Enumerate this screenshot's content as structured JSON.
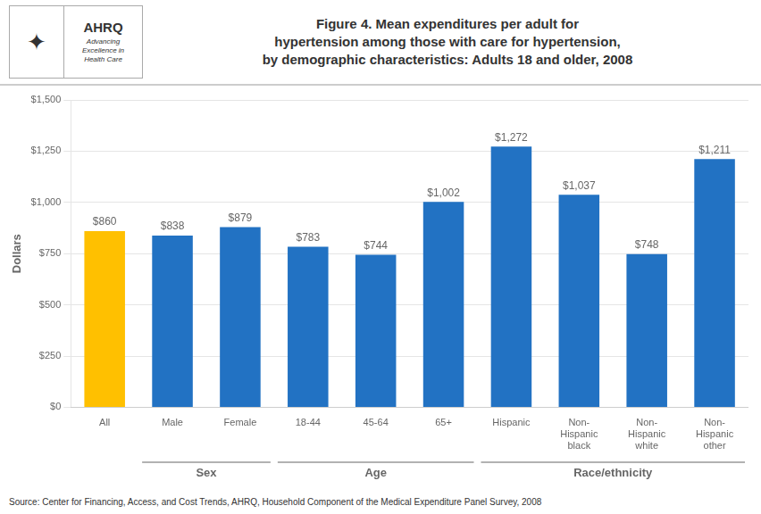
{
  "chart_data": {
    "type": "bar",
    "title": [
      "Figure 4.  Mean expenditures per adult for",
      "hypertension among those with care for hypertension,",
      "by demographic characteristics: Adults 18 and older, 2008"
    ],
    "ylabel": "Dollars",
    "categories": [
      "All",
      "Male",
      "Female",
      "18-44",
      "45-64",
      "65+",
      "Hispanic",
      "Non-\nHispanic\nblack",
      "Non-\nHispanic\nwhite",
      "Non-\nHispanic\nother"
    ],
    "values": [
      860,
      838,
      879,
      783,
      744,
      1002,
      1272,
      1037,
      748,
      1211
    ],
    "value_labels": [
      "$860",
      "$838",
      "$879",
      "$783",
      "$744",
      "$1,002",
      "$1,272",
      "$1,037",
      "$748",
      "$1,211"
    ],
    "data_labels": true,
    "colors": [
      "#FFC000",
      "#2272C3",
      "#2272C3",
      "#2272C3",
      "#2272C3",
      "#2272C3",
      "#2272C3",
      "#2272C3",
      "#2272C3",
      "#2272C3"
    ],
    "ylim": [
      0,
      1500
    ],
    "yticks": [
      {
        "value": 0,
        "label": "$0"
      },
      {
        "value": 250,
        "label": "$250"
      },
      {
        "value": 500,
        "label": "$500"
      },
      {
        "value": 750,
        "label": "$750"
      },
      {
        "value": 1000,
        "label": "$1,000"
      },
      {
        "value": 1250,
        "label": "$1,250"
      },
      {
        "value": 1500,
        "label": "$1,500"
      }
    ],
    "grid": true,
    "groups": [
      {
        "name": "Sex",
        "categories": [
          "Male",
          "Female"
        ]
      },
      {
        "name": "Age",
        "categories": [
          "18-44",
          "45-64",
          "65+"
        ]
      },
      {
        "name": "Race/ethnicity",
        "categories": [
          "Hispanic",
          "Non-\nHispanic\nblack",
          "Non-\nHispanic\nwhite",
          "Non-\nHispanic\nother"
        ]
      }
    ],
    "annotations": [
      "✦",
      "AHRQ",
      "Advancing\nExcellence in\nHealth Care"
    ],
    "source": "Source: Center for Financing, Access, and Cost Trends, AHRQ, Household Component of the Medical Expenditure Panel Survey, 2008"
  }
}
